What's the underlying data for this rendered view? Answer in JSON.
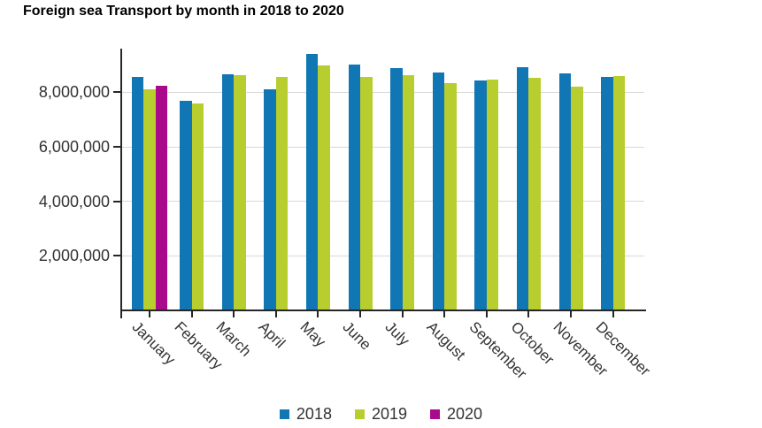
{
  "chart_data": {
    "type": "bar",
    "title": "Foreign sea Transport by month in 2018 to 2020",
    "categories": [
      "January",
      "February",
      "March",
      "April",
      "May",
      "June",
      "July",
      "August",
      "September",
      "October",
      "November",
      "December"
    ],
    "series": [
      {
        "name": "2018",
        "color": "#1076B4",
        "values": [
          8550000,
          7700000,
          8670000,
          8100000,
          9400000,
          9030000,
          8900000,
          8730000,
          8420000,
          8930000,
          8700000,
          8560000
        ]
      },
      {
        "name": "2019",
        "color": "#B7CE2E",
        "values": [
          8100000,
          7580000,
          8640000,
          8550000,
          8980000,
          8550000,
          8620000,
          8350000,
          8470000,
          8530000,
          8200000,
          8600000
        ]
      },
      {
        "name": "2020",
        "color": "#A90A8C",
        "values": [
          8250000,
          null,
          null,
          null,
          null,
          null,
          null,
          null,
          null,
          null,
          null,
          null
        ]
      }
    ],
    "ylim": [
      0,
      9600000
    ],
    "yticks": [
      2000000,
      4000000,
      6000000,
      8000000
    ],
    "ytick_labels": [
      "2,000,000",
      "4,000,000",
      "6,000,000",
      "8,000,000"
    ],
    "xlabel": "",
    "ylabel": "",
    "grid": true,
    "legend_position": "bottom",
    "colors": {
      "axis": "#262626",
      "gridline": "#d8d8d8",
      "text": "#333333",
      "title": "#000000"
    }
  }
}
